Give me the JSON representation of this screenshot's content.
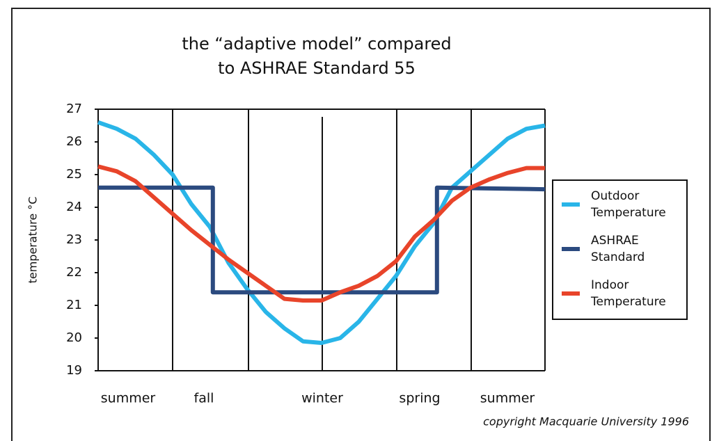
{
  "chart_data": {
    "type": "line",
    "title": [
      "the “adaptive model” compared",
      "to ASHRAE Standard 55"
    ],
    "y_label": "temperature °C",
    "categories": [
      "summer",
      "fall",
      "winter",
      "spring",
      "summer"
    ],
    "annotation": "copyright Macquarie University 1996",
    "x": [
      0,
      0.25,
      0.5,
      0.75,
      1,
      1.25,
      1.5,
      1.75,
      2,
      2.25,
      2.5,
      2.75,
      3,
      3.25,
      3.5,
      3.75,
      4,
      4.25,
      4.5,
      4.75,
      5,
      5.25,
      5.5,
      5.75,
      6
    ],
    "xlim": [
      0,
      6
    ],
    "ylim": [
      19,
      27
    ],
    "yticks": [
      19,
      20,
      21,
      22,
      23,
      24,
      25,
      26,
      27
    ],
    "series": [
      {
        "name": "Outdoor Temperature",
        "color": "#29b5e8",
        "values": [
          26.6,
          26.4,
          26.1,
          25.6,
          25.0,
          24.1,
          23.4,
          22.3,
          21.5,
          20.8,
          20.3,
          19.9,
          19.85,
          20.0,
          20.5,
          21.2,
          21.9,
          22.8,
          23.5,
          24.6,
          25.1,
          25.6,
          26.1,
          26.4,
          26.5
        ]
      },
      {
        "name": "ASHRAE Standard",
        "color": "#2b4a7f",
        "x": [
          0,
          1.54,
          1.54,
          4.55,
          4.55,
          6
        ],
        "values": [
          24.6,
          24.6,
          21.4,
          21.4,
          24.6,
          24.55
        ]
      },
      {
        "name": "Indoor Temperature",
        "color": "#e8442a",
        "values": [
          25.25,
          25.1,
          24.8,
          24.3,
          23.8,
          23.3,
          22.85,
          22.4,
          22.0,
          21.6,
          21.2,
          21.15,
          21.15,
          21.4,
          21.6,
          21.9,
          22.35,
          23.1,
          23.6,
          24.2,
          24.6,
          24.85,
          25.05,
          25.2,
          25.2
        ]
      }
    ],
    "legend": "right"
  }
}
